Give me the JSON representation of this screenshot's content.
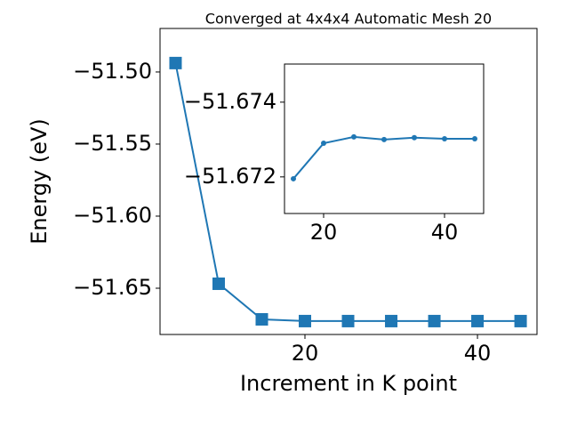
{
  "chart_data": [
    {
      "type": "line",
      "title": "Converged at 4x4x4 Automatic Mesh 20",
      "x_label": "Increment in K point",
      "y_label": "Energy (eV)",
      "x": [
        5,
        10,
        15,
        20,
        25,
        30,
        35,
        40,
        45
      ],
      "series": [
        {
          "name": "Energy",
          "color": "#1f77b4",
          "marker": "square",
          "values": [
            -51.4938,
            -51.6469,
            -51.6716,
            -51.6728,
            -51.6728,
            -51.6728,
            -51.6728,
            -51.6728,
            -51.6728
          ]
        }
      ],
      "xlim": [
        3.2,
        46.9
      ],
      "xticks": [
        20,
        40
      ],
      "ylim": [
        -51.6821,
        -51.4698
      ],
      "yticks": [
        {
          "value": -51.65,
          "label": "−51.65"
        },
        {
          "value": -51.6,
          "label": "−51.60"
        },
        {
          "value": -51.55,
          "label": "−51.55"
        },
        {
          "value": -51.5,
          "label": "−51.50"
        }
      ]
    },
    {
      "type": "line",
      "x": [
        15,
        20,
        25,
        30,
        35,
        40,
        45
      ],
      "series": [
        {
          "name": "Energy",
          "color": "#1f77b4",
          "marker": "circle",
          "values": [
            -51.67195,
            -51.6729,
            -51.67307,
            -51.673,
            -51.67305,
            -51.67302,
            -51.67302
          ]
        }
      ],
      "xlim": [
        13.53,
        46.47
      ],
      "xticks": [
        20,
        40
      ],
      "ylim": [
        -51.67102,
        -51.67502
      ],
      "yticks": [
        {
          "value": -51.672,
          "label": "−51.672"
        },
        {
          "value": -51.674,
          "label": "−51.674"
        }
      ]
    }
  ]
}
